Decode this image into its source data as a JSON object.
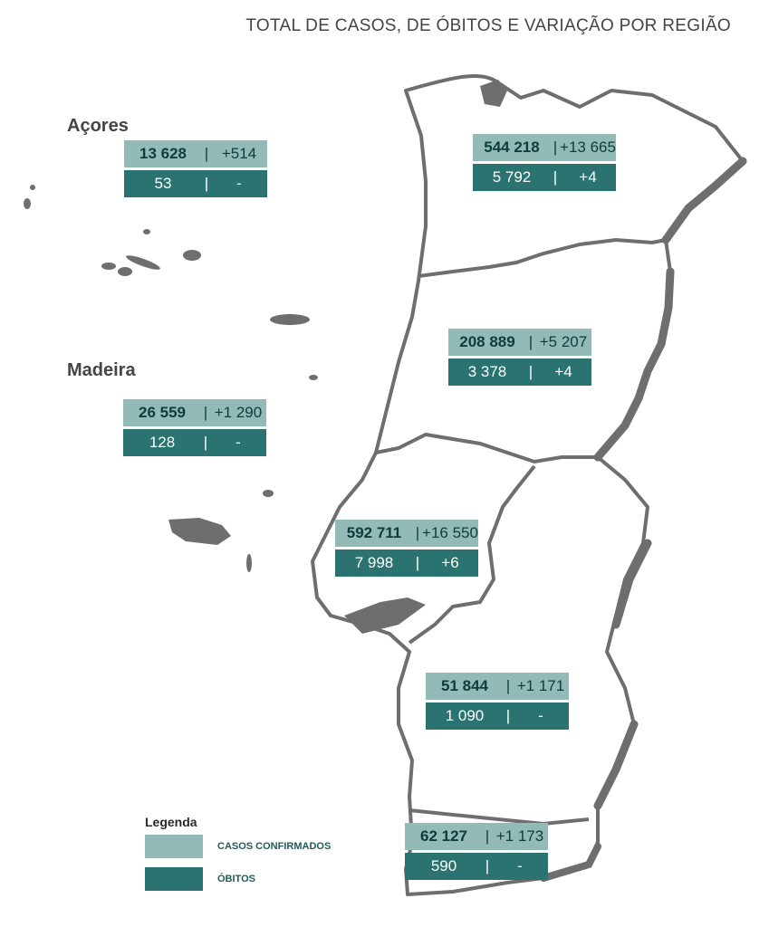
{
  "title": "TOTAL DE CASOS, DE ÓBITOS E VARIAÇÃO POR REGIÃO",
  "colors": {
    "cases": "#92bab6",
    "deaths": "#2b7370",
    "map": "#6e6e6e"
  },
  "islands": {
    "acores": "Açores",
    "madeira": "Madeira"
  },
  "regions": {
    "acores": {
      "cases": "13 628",
      "cases_var": "+514",
      "deaths": "53",
      "deaths_var": "-"
    },
    "madeira": {
      "cases": "26 559",
      "cases_var": "+1 290",
      "deaths": "128",
      "deaths_var": "-"
    },
    "norte": {
      "cases": "544 218",
      "cases_var": "+13 665",
      "deaths": "5 792",
      "deaths_var": "+4"
    },
    "centro": {
      "cases": "208 889",
      "cases_var": "+5 207",
      "deaths": "3 378",
      "deaths_var": "+4"
    },
    "lvt": {
      "cases": "592 711",
      "cases_var": "+16 550",
      "deaths": "7 998",
      "deaths_var": "+6"
    },
    "alentejo": {
      "cases": "51 844",
      "cases_var": "+1 171",
      "deaths": "1 090",
      "deaths_var": "-"
    },
    "algarve": {
      "cases": "62 127",
      "cases_var": "+1 173",
      "deaths": "590",
      "deaths_var": "-"
    }
  },
  "separator": "|",
  "legend": {
    "title": "Legenda",
    "cases_label": "CASOS CONFIRMADOS",
    "deaths_label": "ÓBITOS"
  }
}
